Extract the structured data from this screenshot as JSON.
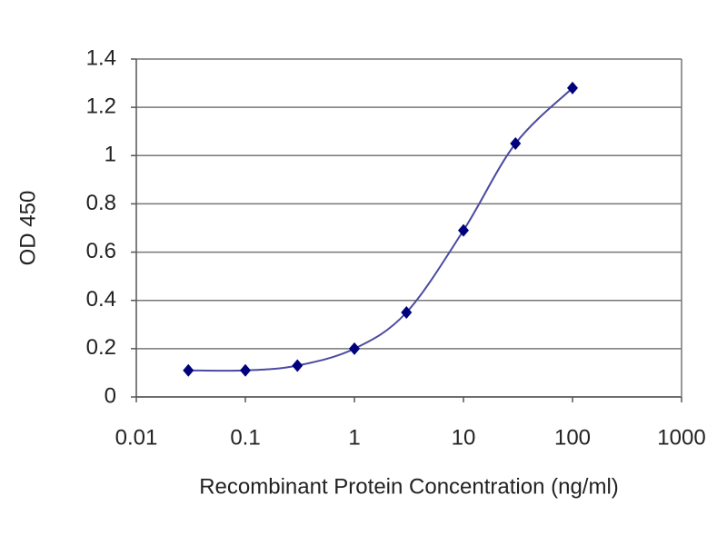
{
  "chart_data": {
    "type": "line",
    "x_label": "Recombinant Protein Concentration (ng/ml)",
    "y_label": "OD 450",
    "x": [
      0.03,
      0.1,
      0.3,
      1,
      3,
      10,
      30,
      100
    ],
    "series": [
      {
        "color": "#00007f",
        "values": [
          0.11,
          0.11,
          0.13,
          0.2,
          0.35,
          0.69,
          1.05,
          1.28
        ]
      }
    ],
    "line_color": "#4a4aa0",
    "xlim": [
      0.01,
      1000
    ],
    "xticks": [
      0.01,
      0.1,
      1,
      10,
      100,
      1000
    ],
    "ylim": [
      0,
      1.4
    ],
    "yticks": [
      0,
      0.2,
      0.4,
      0.6,
      0.8,
      1,
      1.2,
      1.4
    ],
    "x_log": true,
    "grid": true
  }
}
